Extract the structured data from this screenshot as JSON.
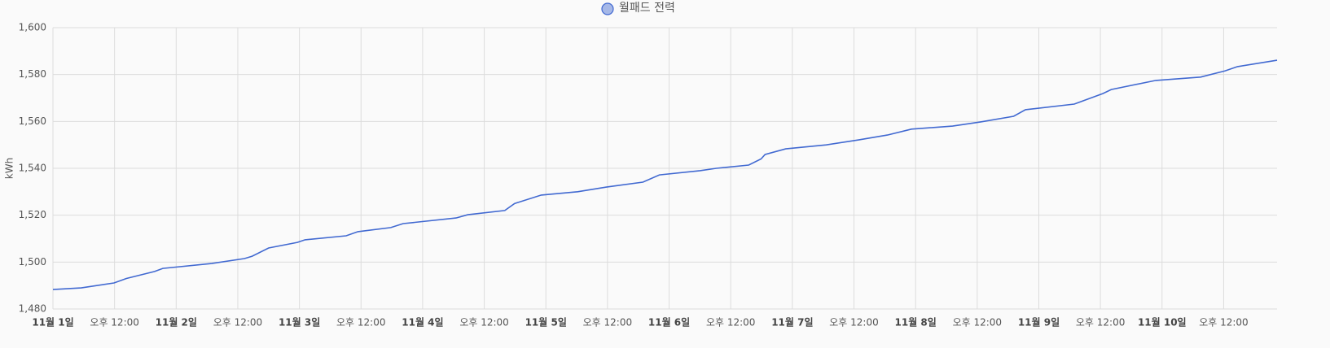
{
  "chart_data": {
    "type": "line",
    "y_label": "kWh",
    "xlim": [
      0,
      238.4
    ],
    "xticks": [
      {
        "value": 0,
        "label": "11월 1일"
      },
      {
        "value": 12,
        "label": "오후 12:00"
      },
      {
        "value": 24,
        "label": "11월 2일"
      },
      {
        "value": 36,
        "label": "오후 12:00"
      },
      {
        "value": 48,
        "label": "11월 3일"
      },
      {
        "value": 60,
        "label": "오후 12:00"
      },
      {
        "value": 72,
        "label": "11월 4일"
      },
      {
        "value": 84,
        "label": "오후 12:00"
      },
      {
        "value": 96,
        "label": "11월 5일"
      },
      {
        "value": 108,
        "label": "오후 12:00"
      },
      {
        "value": 120,
        "label": "11월 6일"
      },
      {
        "value": 132,
        "label": "오후 12:00"
      },
      {
        "value": 144,
        "label": "11월 7일"
      },
      {
        "value": 156,
        "label": "오후 12:00"
      },
      {
        "value": 168,
        "label": "11월 8일"
      },
      {
        "value": 180,
        "label": "오후 12:00"
      },
      {
        "value": 192,
        "label": "11월 9일"
      },
      {
        "value": 204,
        "label": "오후 12:00"
      },
      {
        "value": 216,
        "label": "11월 10일"
      },
      {
        "value": 228,
        "label": "오후 12:00"
      }
    ],
    "ylim": [
      1480,
      1600
    ],
    "yticks": [
      {
        "value": 1480,
        "label": "1,480"
      },
      {
        "value": 1500,
        "label": "1,500"
      },
      {
        "value": 1520,
        "label": "1,520"
      },
      {
        "value": 1540,
        "label": "1,540"
      },
      {
        "value": 1560,
        "label": "1,560"
      },
      {
        "value": 1580,
        "label": "1,580"
      },
      {
        "value": 1600,
        "label": "1,600"
      }
    ],
    "grid": true,
    "legend": "top",
    "x": [
      0,
      5.5,
      11.9,
      14.3,
      19.8,
      21.4,
      30.9,
      37.3,
      38.8,
      42,
      47.6,
      49.1,
      57.1,
      59.4,
      65.8,
      68.2,
      78.5,
      80.8,
      88,
      89.9,
      95.1,
      102.2,
      107.8,
      114.9,
      118.1,
      126,
      129.2,
      135.5,
      137.9,
      138.7,
      142.7,
      150.6,
      156.9,
      162.5,
      167.2,
      175.2,
      180.7,
      187.1,
      189.4,
      198.9,
      204.5,
      206.1,
      214.8,
      223.5,
      228.3,
      230.7,
      238.4
    ],
    "series": [
      {
        "name": "월패드 전력",
        "color": "#4169d1",
        "values": [
          1488.3,
          1489,
          1491.1,
          1493,
          1496,
          1497.3,
          1499.4,
          1501.5,
          1502.5,
          1506,
          1508.4,
          1509.5,
          1511.2,
          1513,
          1514.7,
          1516.4,
          1518.8,
          1520.2,
          1522,
          1525,
          1528.6,
          1530,
          1532,
          1534.1,
          1537.2,
          1539,
          1540,
          1541.4,
          1544,
          1545.9,
          1548.3,
          1550,
          1552.1,
          1554.2,
          1556.7,
          1558,
          1559.8,
          1562.2,
          1565,
          1567.4,
          1571.9,
          1573.6,
          1577.5,
          1578.9,
          1581.6,
          1583.4,
          1586.1
        ]
      }
    ]
  }
}
